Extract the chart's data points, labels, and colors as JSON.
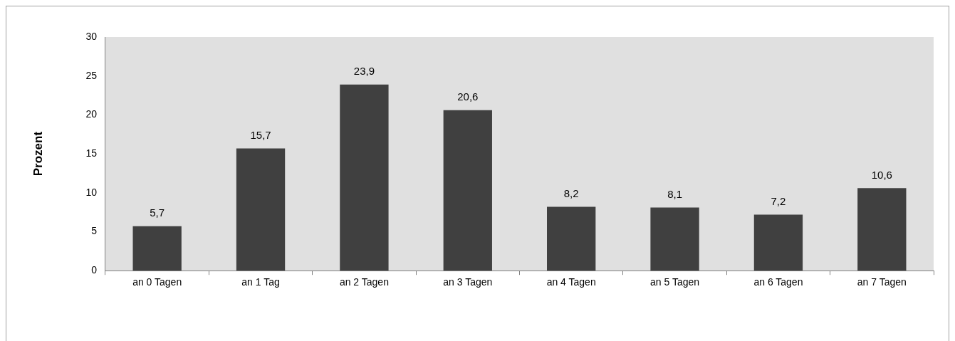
{
  "chart_data": {
    "type": "bar",
    "ylabel": "Prozent",
    "categories": [
      "an 0 Tagen",
      "an 1 Tag",
      "an 2 Tagen",
      "an 3 Tagen",
      "an 4 Tagen",
      "an 5 Tagen",
      "an 6 Tagen",
      "an 7 Tagen"
    ],
    "values": [
      5.7,
      15.7,
      23.9,
      20.6,
      8.2,
      8.1,
      7.2,
      10.6
    ],
    "value_labels": [
      "5,7",
      "15,7",
      "23,9",
      "20,6",
      "8,2",
      "8,1",
      "7,2",
      "10,6"
    ],
    "color": "#404040",
    "ylim": [
      0,
      30
    ],
    "yticks": [
      0,
      5,
      10,
      15,
      20,
      25,
      30
    ],
    "grid": false,
    "legend": false
  }
}
